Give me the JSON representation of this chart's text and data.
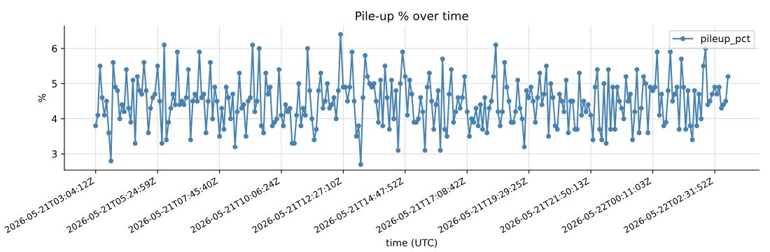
{
  "chart_data": {
    "type": "line",
    "title": "Pile-up % over time",
    "xlabel": "time (UTC)",
    "ylabel": "%",
    "x": [
      "2026-05-21T03:04",
      "2026-05-21T03:09",
      "2026-05-21T03:14",
      "2026-05-21T03:19",
      "2026-05-21T03:24",
      "2026-05-21T03:29",
      "2026-05-21T03:34",
      "2026-05-21T03:39",
      "2026-05-21T03:44",
      "2026-05-21T03:49",
      "2026-05-21T03:54",
      "2026-05-21T03:59",
      "2026-05-21T04:04",
      "2026-05-21T04:09",
      "2026-05-21T04:14",
      "2026-05-21T04:19",
      "2026-05-21T04:24",
      "2026-05-21T04:29",
      "2026-05-21T04:34",
      "2026-05-21T04:39",
      "2026-05-21T04:44",
      "2026-05-21T04:49",
      "2026-05-21T04:54",
      "2026-05-21T04:59",
      "2026-05-21T05:04",
      "2026-05-21T05:09",
      "2026-05-21T05:14",
      "2026-05-21T05:19",
      "2026-05-21T05:25",
      "2026-05-21T05:30",
      "2026-05-21T05:35",
      "2026-05-21T05:40",
      "2026-05-21T05:45",
      "2026-05-21T05:50",
      "2026-05-21T05:55",
      "2026-05-21T06:00",
      "2026-05-21T06:05",
      "2026-05-21T06:10",
      "2026-05-21T06:15",
      "2026-05-21T06:20",
      "2026-05-21T06:25",
      "2026-05-21T06:30",
      "2026-05-21T06:35",
      "2026-05-21T06:40",
      "2026-05-21T06:45",
      "2026-05-21T06:50",
      "2026-05-21T06:55",
      "2026-05-21T07:00",
      "2026-05-21T07:05",
      "2026-05-21T07:10",
      "2026-05-21T07:15",
      "2026-05-21T07:20",
      "2026-05-21T07:25",
      "2026-05-21T07:30",
      "2026-05-21T07:35",
      "2026-05-21T07:40",
      "2026-05-21T07:46",
      "2026-05-21T07:51",
      "2026-05-21T07:56",
      "2026-05-21T08:01",
      "2026-05-21T08:06",
      "2026-05-21T08:11",
      "2026-05-21T08:16",
      "2026-05-21T08:21",
      "2026-05-21T08:26",
      "2026-05-21T08:31",
      "2026-05-21T08:36",
      "2026-05-21T08:41",
      "2026-05-21T08:46",
      "2026-05-21T08:51",
      "2026-05-21T08:56",
      "2026-05-21T09:01",
      "2026-05-21T09:06",
      "2026-05-21T09:11",
      "2026-05-21T09:16",
      "2026-05-21T09:21",
      "2026-05-21T09:26",
      "2026-05-21T09:31",
      "2026-05-21T09:36",
      "2026-05-21T09:41",
      "2026-05-21T09:46",
      "2026-05-21T09:51",
      "2026-05-21T09:56",
      "2026-05-21T10:01",
      "2026-05-21T10:06",
      "2026-05-21T10:11",
      "2026-05-21T10:16",
      "2026-05-21T10:21",
      "2026-05-21T10:26",
      "2026-05-21T10:31",
      "2026-05-21T10:36",
      "2026-05-21T10:41",
      "2026-05-21T10:46",
      "2026-05-21T10:51",
      "2026-05-21T10:56",
      "2026-05-21T11:01",
      "2026-05-21T11:06",
      "2026-05-21T11:11",
      "2026-05-21T11:16",
      "2026-05-21T11:21",
      "2026-05-21T11:26",
      "2026-05-21T11:31",
      "2026-05-21T11:36",
      "2026-05-21T11:41",
      "2026-05-21T11:46",
      "2026-05-21T11:51",
      "2026-05-21T11:56",
      "2026-05-21T12:01",
      "2026-05-21T12:06",
      "2026-05-21T12:11",
      "2026-05-21T12:16",
      "2026-05-21T12:21",
      "2026-05-21T12:27",
      "2026-05-21T12:32",
      "2026-05-21T12:37",
      "2026-05-21T12:42",
      "2026-05-21T12:47",
      "2026-05-21T12:52",
      "2026-05-21T12:57",
      "2026-05-21T13:02",
      "2026-05-21T13:07",
      "2026-05-21T13:12",
      "2026-05-21T13:17",
      "2026-05-21T13:22",
      "2026-05-21T13:27",
      "2026-05-21T13:32",
      "2026-05-21T13:37",
      "2026-05-21T13:42",
      "2026-05-21T13:47",
      "2026-05-21T13:52",
      "2026-05-21T13:57",
      "2026-05-21T14:02",
      "2026-05-21T14:07",
      "2026-05-21T14:12",
      "2026-05-21T14:17",
      "2026-05-21T14:22",
      "2026-05-21T14:27",
      "2026-05-21T14:32",
      "2026-05-21T14:37",
      "2026-05-21T14:42",
      "2026-05-21T14:48",
      "2026-05-21T14:53",
      "2026-05-21T14:58",
      "2026-05-21T15:03",
      "2026-05-21T15:08",
      "2026-05-21T15:13",
      "2026-05-21T15:18",
      "2026-05-21T15:23",
      "2026-05-21T15:28",
      "2026-05-21T15:33",
      "2026-05-21T15:38",
      "2026-05-21T15:43",
      "2026-05-21T15:48",
      "2026-05-21T15:53",
      "2026-05-21T15:58",
      "2026-05-21T16:03",
      "2026-05-21T16:08",
      "2026-05-21T16:13",
      "2026-05-21T16:18",
      "2026-05-21T16:23",
      "2026-05-21T16:28",
      "2026-05-21T16:33",
      "2026-05-21T16:38",
      "2026-05-21T16:43",
      "2026-05-21T16:48",
      "2026-05-21T16:53",
      "2026-05-21T16:58",
      "2026-05-21T17:03",
      "2026-05-21T17:09",
      "2026-05-21T17:14",
      "2026-05-21T17:19",
      "2026-05-21T17:24",
      "2026-05-21T17:29",
      "2026-05-21T17:34",
      "2026-05-21T17:39",
      "2026-05-21T17:44",
      "2026-05-21T17:49",
      "2026-05-21T17:54",
      "2026-05-21T17:59",
      "2026-05-21T18:04",
      "2026-05-21T18:09",
      "2026-05-21T18:14",
      "2026-05-21T18:19",
      "2026-05-21T18:24",
      "2026-05-21T18:29",
      "2026-05-21T18:34",
      "2026-05-21T18:39",
      "2026-05-21T18:44",
      "2026-05-21T18:49",
      "2026-05-21T18:54",
      "2026-05-21T18:59",
      "2026-05-21T19:04",
      "2026-05-21T19:09",
      "2026-05-21T19:14",
      "2026-05-21T19:19",
      "2026-05-21T19:24",
      "2026-05-21T19:29",
      "2026-05-21T19:34",
      "2026-05-21T19:39",
      "2026-05-21T19:44",
      "2026-05-21T19:49",
      "2026-05-21T19:54",
      "2026-05-21T19:59",
      "2026-05-21T20:04",
      "2026-05-21T20:09",
      "2026-05-21T20:14",
      "2026-05-21T20:19",
      "2026-05-21T20:24",
      "2026-05-21T20:29",
      "2026-05-21T20:34",
      "2026-05-21T20:39",
      "2026-05-21T20:44",
      "2026-05-21T20:49",
      "2026-05-21T20:54",
      "2026-05-21T20:59",
      "2026-05-21T21:04",
      "2026-05-21T21:09",
      "2026-05-21T21:14",
      "2026-05-21T21:19",
      "2026-05-21T21:24",
      "2026-05-21T21:29",
      "2026-05-21T21:34",
      "2026-05-21T21:39",
      "2026-05-21T21:44",
      "2026-05-21T21:50",
      "2026-05-21T21:55",
      "2026-05-21T22:00",
      "2026-05-21T22:05",
      "2026-05-21T22:10",
      "2026-05-21T22:15",
      "2026-05-21T22:20",
      "2026-05-21T22:25",
      "2026-05-21T22:30",
      "2026-05-21T22:35",
      "2026-05-21T22:40",
      "2026-05-21T22:45",
      "2026-05-21T22:50",
      "2026-05-21T22:55",
      "2026-05-21T23:00",
      "2026-05-21T23:05",
      "2026-05-21T23:10",
      "2026-05-21T23:15",
      "2026-05-21T23:20",
      "2026-05-21T23:25",
      "2026-05-21T23:30",
      "2026-05-21T23:35",
      "2026-05-21T23:40",
      "2026-05-21T23:45",
      "2026-05-21T23:50",
      "2026-05-21T23:55",
      "2026-05-22T00:00",
      "2026-05-22T00:05",
      "2026-05-22T00:11",
      "2026-05-22T00:16",
      "2026-05-22T00:21",
      "2026-05-22T00:26",
      "2026-05-22T00:31",
      "2026-05-22T00:36",
      "2026-05-22T00:41",
      "2026-05-22T00:46",
      "2026-05-22T00:51",
      "2026-05-22T00:56",
      "2026-05-22T01:01",
      "2026-05-22T01:06",
      "2026-05-22T01:11",
      "2026-05-22T01:16",
      "2026-05-22T01:21",
      "2026-05-22T01:26",
      "2026-05-22T01:31",
      "2026-05-22T01:36",
      "2026-05-22T01:41",
      "2026-05-22T01:46",
      "2026-05-22T01:51",
      "2026-05-22T01:56",
      "2026-05-22T02:01",
      "2026-05-22T02:06",
      "2026-05-22T02:11",
      "2026-05-22T02:16",
      "2026-05-22T02:21",
      "2026-05-22T02:26",
      "2026-05-22T02:32",
      "2026-05-22T02:37",
      "2026-05-22T02:42",
      "2026-05-22T02:47",
      "2026-05-22T02:52",
      "2026-05-22T02:57",
      "2026-05-22T03:02"
    ],
    "xlim": [
      "2026-05-21T01:53:00",
      "2026-05-22T04:13:00"
    ],
    "xticks": [
      {
        "value": "2026-05-21T03:04:12",
        "label": "2026-05-21T03:04:12Z"
      },
      {
        "value": "2026-05-21T05:24:59",
        "label": "2026-05-21T05:24:59Z"
      },
      {
        "value": "2026-05-21T07:45:40",
        "label": "2026-05-21T07:45:40Z"
      },
      {
        "value": "2026-05-21T10:06:24",
        "label": "2026-05-21T10:06:24Z"
      },
      {
        "value": "2026-05-21T12:27:10",
        "label": "2026-05-21T12:27:10Z"
      },
      {
        "value": "2026-05-21T14:47:52",
        "label": "2026-05-21T14:47:52Z"
      },
      {
        "value": "2026-05-21T17:08:42",
        "label": "2026-05-21T17:08:42Z"
      },
      {
        "value": "2026-05-21T19:29:25",
        "label": "2026-05-21T19:29:25Z"
      },
      {
        "value": "2026-05-21T21:50:13",
        "label": "2026-05-21T21:50:13Z"
      },
      {
        "value": "2026-05-22T00:11:03",
        "label": "2026-05-22T00:11:03Z"
      },
      {
        "value": "2026-05-22T02:31:52",
        "label": "2026-05-22T02:31:52Z"
      }
    ],
    "series": [
      {
        "name": "pileup_pct",
        "color": "#4682b4",
        "values": [
          3.8,
          4.1,
          5.5,
          4.6,
          4.1,
          4.5,
          3.6,
          2.8,
          5.6,
          4.9,
          4.8,
          4.0,
          4.4,
          4.2,
          5.4,
          4.3,
          3.9,
          5.1,
          3.3,
          5.2,
          4.8,
          4.7,
          5.6,
          4.8,
          3.6,
          4.3,
          4.6,
          4.7,
          5.5,
          4.5,
          3.3,
          6.1,
          3.4,
          3.9,
          4.3,
          4.7,
          4.4,
          5.9,
          4.4,
          4.5,
          4.4,
          4.6,
          5.4,
          3.4,
          4.5,
          4.7,
          4.5,
          5.9,
          4.6,
          4.7,
          3.6,
          4.5,
          5.6,
          4.0,
          4.9,
          4.5,
          3.5,
          4.3,
          3.7,
          4.9,
          4.6,
          4.0,
          4.7,
          3.2,
          4.2,
          5.3,
          4.3,
          4.4,
          3.5,
          4.5,
          4.6,
          6.1,
          4.2,
          4.5,
          6.0,
          3.8,
          3.6,
          5.3,
          4.7,
          4.9,
          3.8,
          3.9,
          4.0,
          5.4,
          4.1,
          3.8,
          4.4,
          4.2,
          4.3,
          3.3,
          3.3,
          4.1,
          5.0,
          3.8,
          4.3,
          4.1,
          6.0,
          4.8,
          4.0,
          3.4,
          3.7,
          4.8,
          5.3,
          4.3,
          4.5,
          5.0,
          4.3,
          4.4,
          4.6,
          4.0,
          4.8,
          6.4,
          4.9,
          4.9,
          4.5,
          4.9,
          5.9,
          4.5,
          3.5,
          3.8,
          2.7,
          4.6,
          5.8,
          5.2,
          5.0,
          4.9,
          5.0,
          4.5,
          3.9,
          5.1,
          3.8,
          5.5,
          4.6,
          3.7,
          5.1,
          4.0,
          4.8,
          3.1,
          5.0,
          5.9,
          5.2,
          4.1,
          5.1,
          4.7,
          3.9,
          3.9,
          4.0,
          4.6,
          4.2,
          3.1,
          4.9,
          5.3,
          4.5,
          3.7,
          4.4,
          4.8,
          3.1,
          5.7,
          3.7,
          3.5,
          4.7,
          5.4,
          3.9,
          4.2,
          4.6,
          4.3,
          4.6,
          5.2,
          4.2,
          3.5,
          4.0,
          3.9,
          4.3,
          3.8,
          4.4,
          3.7,
          4.6,
          3.6,
          4.3,
          4.5,
          5.2,
          6.1,
          4.2,
          3.8,
          4.2,
          5.6,
          4.9,
          4.5,
          3.9,
          3.9,
          4.2,
          5.1,
          4.3,
          4.0,
          3.2,
          4.8,
          4.6,
          4.9,
          4.5,
          3.9,
          4.6,
          5.3,
          4.4,
          4.7,
          5.5,
          3.5,
          5.0,
          4.6,
          3.8,
          3.7,
          4.7,
          4.5,
          4.2,
          5.1,
          3.6,
          4.5,
          4.5,
          3.7,
          3.7,
          5.3,
          4.1,
          4.5,
          4.2,
          4.4,
          4.1,
          3.4,
          4.9,
          5.4,
          3.7,
          3.4,
          5.0,
          3.3,
          5.4,
          3.7,
          4.9,
          3.7,
          4.9,
          4.5,
          4.3,
          4.0,
          5.2,
          4.5,
          4.7,
          3.4,
          4.2,
          5.4,
          3.6,
          4.3,
          5.2,
          5.0,
          3.6,
          4.9,
          4.8,
          4.9,
          5.9,
          4.1,
          4.7,
          3.8,
          3.9,
          4.8,
          5.9,
          4.5,
          4.7,
          4.9,
          3.7,
          5.7,
          4.9,
          3.7,
          4.8,
          3.8,
          3.4,
          4.8,
          3.8,
          4.7,
          4.0,
          5.5,
          6.0,
          4.4,
          4.5,
          4.7,
          4.9,
          4.7,
          4.9,
          4.3,
          4.4,
          4.5,
          5.2
        ]
      }
    ],
    "ylim": [
      2.54,
      6.64
    ],
    "yticks": [
      3,
      4,
      5,
      6
    ],
    "grid": true,
    "legend": "top right",
    "marker": "circle",
    "line_style": "solid"
  }
}
